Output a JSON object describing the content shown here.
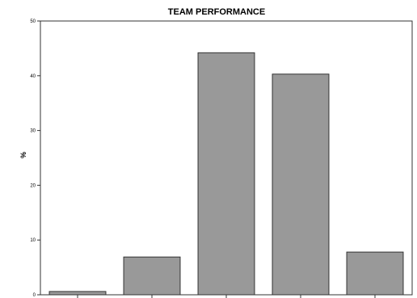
{
  "chart_data": {
    "type": "bar",
    "title": "TEAM PERFORMANCE",
    "xlabel": "",
    "ylabel": "%",
    "categories": [
      "",
      "",
      "",
      "",
      ""
    ],
    "values": [
      0.6,
      6.9,
      44.2,
      40.3,
      7.8
    ],
    "ylim": [
      0,
      50
    ],
    "yticks": [
      0,
      10,
      20,
      30,
      40,
      50
    ],
    "grid": false,
    "colors": {
      "bar_fill": "#999999",
      "bar_stroke": "#333333",
      "axis": "#333333"
    }
  }
}
